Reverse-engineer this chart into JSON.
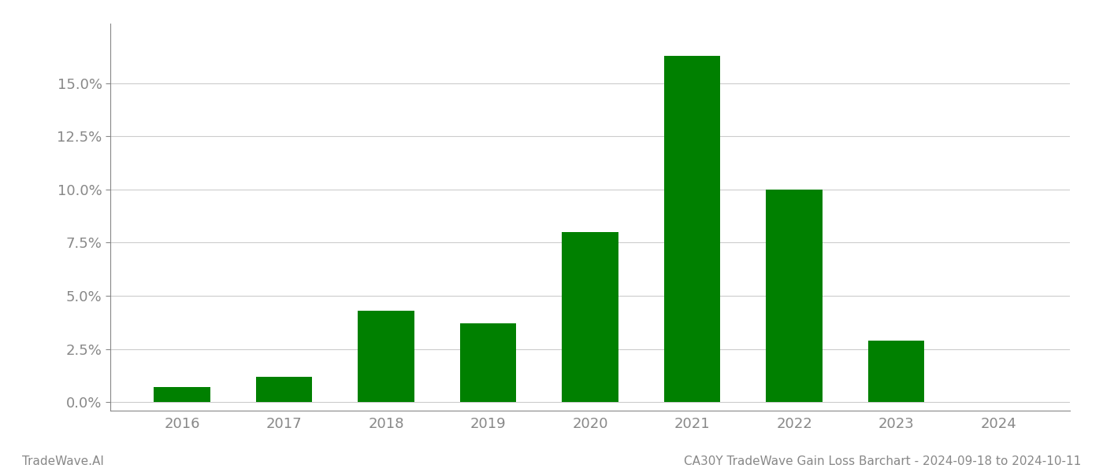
{
  "years": [
    2016,
    2017,
    2018,
    2019,
    2020,
    2021,
    2022,
    2023,
    2024
  ],
  "values": [
    0.007,
    0.012,
    0.043,
    0.037,
    0.08,
    0.163,
    0.1,
    0.029,
    0.0
  ],
  "bar_color": "#008000",
  "background_color": "#ffffff",
  "grid_color": "#cccccc",
  "axis_color": "#888888",
  "tick_color": "#888888",
  "ylabel_ticks": [
    0.0,
    0.025,
    0.05,
    0.075,
    0.1,
    0.125,
    0.15
  ],
  "ylim": [
    -0.004,
    0.178
  ],
  "footer_left": "TradeWave.AI",
  "footer_right": "CA30Y TradeWave Gain Loss Barchart - 2024-09-18 to 2024-10-11",
  "footer_color": "#888888",
  "footer_fontsize": 11,
  "tick_fontsize": 13,
  "bar_width": 0.55
}
